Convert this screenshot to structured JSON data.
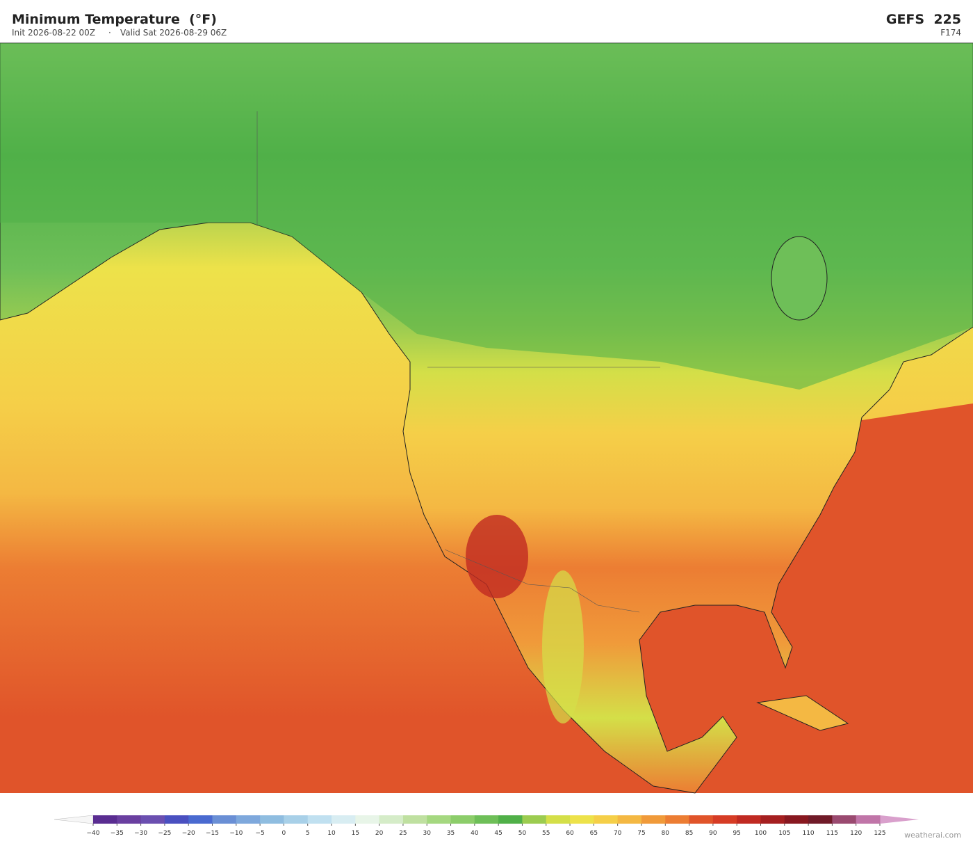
{
  "header": {
    "title": "Minimum Temperature  (°F)",
    "init": "Init 2026-08-22 00Z",
    "separator": "·",
    "valid": "Valid Sat 2026-08-29 06Z",
    "model": "GEFS  225",
    "forecast_hour": "F174"
  },
  "colorbar": {
    "ticks": [
      "−40",
      "−35",
      "−30",
      "−25",
      "−20",
      "−15",
      "−10",
      "−5",
      "0",
      "5",
      "10",
      "15",
      "20",
      "25",
      "30",
      "35",
      "40",
      "45",
      "50",
      "55",
      "60",
      "65",
      "70",
      "75",
      "80",
      "85",
      "90",
      "95",
      "100",
      "105",
      "110",
      "115",
      "120",
      "125"
    ],
    "colors": [
      "#5a2d91",
      "#6a3fa0",
      "#6b4fb0",
      "#4a50c0",
      "#4a6ad0",
      "#6a8fd5",
      "#7ea8dc",
      "#8fbde0",
      "#a8d0e8",
      "#c0e0f0",
      "#d8edf2",
      "#e8f5e8",
      "#d5ecc8",
      "#bfe0a0",
      "#a5d880",
      "#8ccd6a",
      "#6ebf58",
      "#50b048",
      "#9ccc50",
      "#d4df48",
      "#ede24a",
      "#f5cf48",
      "#f4b843",
      "#f09a3a",
      "#ec7d33",
      "#e0542a",
      "#d63c25",
      "#c02a22",
      "#a51f20",
      "#881820",
      "#701a28",
      "#9a4a70",
      "#c075a8"
    ],
    "under_color": "#f6f6f6",
    "over_color": "#d9a0cc"
  },
  "footer": {
    "credit": "weatherai.com"
  }
}
